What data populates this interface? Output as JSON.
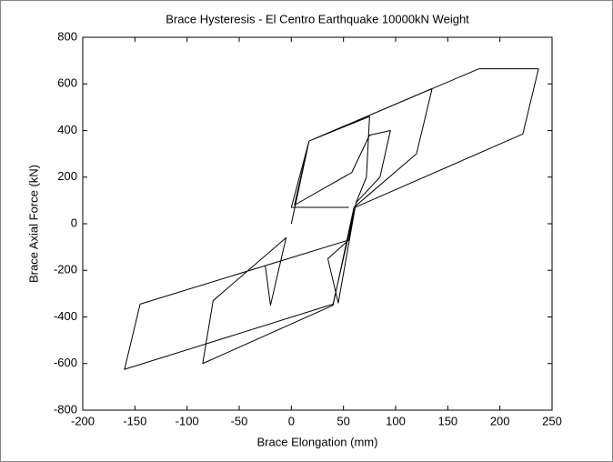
{
  "chart_data": {
    "type": "line",
    "title": "Brace Hysteresis - El Centro Earthquake 10000kN Weight",
    "x_label": "Brace Elongation (mm)",
    "y_label": "Brace Axial Force (kN)",
    "xlim": [
      -200,
      250
    ],
    "ylim": [
      -800,
      800
    ],
    "xticks": [
      -200,
      -150,
      -100,
      -50,
      0,
      50,
      100,
      150,
      200,
      250
    ],
    "yticks": [
      -800,
      -600,
      -400,
      -200,
      0,
      200,
      400,
      600,
      800
    ],
    "grid": false,
    "series": [
      {
        "color": "#000000",
        "x": [
          0,
          17,
          75,
          72,
          62,
          55,
          -25,
          -20,
          -5,
          -75,
          -85,
          40,
          60,
          120,
          135,
          17,
          3,
          58,
          75,
          95,
          85,
          62,
          45,
          35,
          55,
          -145,
          -160,
          40,
          61,
          222,
          237,
          180,
          17,
          0,
          55
        ],
        "values": [
          0,
          355,
          460,
          200,
          90,
          -70,
          -180,
          -350,
          -60,
          -330,
          -600,
          -350,
          70,
          300,
          580,
          355,
          80,
          220,
          380,
          400,
          200,
          90,
          -340,
          -150,
          -70,
          -345,
          -625,
          -345,
          70,
          385,
          665,
          665,
          355,
          70,
          70
        ]
      }
    ]
  }
}
